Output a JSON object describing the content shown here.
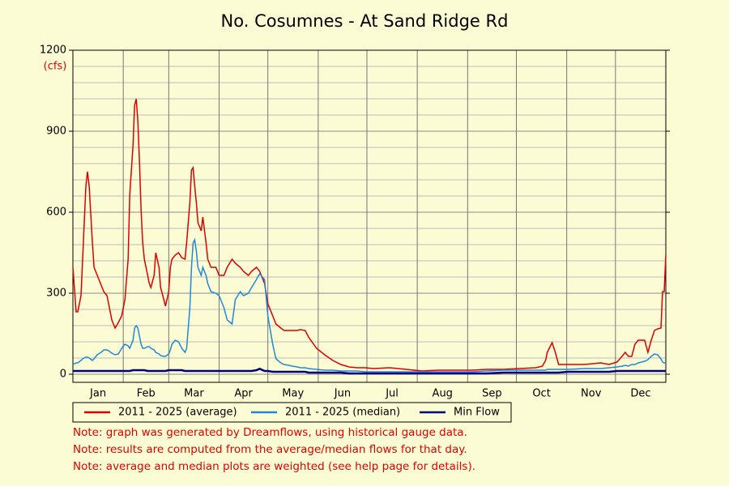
{
  "chart_data": {
    "type": "line",
    "title": "No. Cosumnes - At Sand Ridge Rd",
    "y_label": "(cfs)",
    "x": [
      1,
      3,
      4,
      6,
      7,
      9,
      10,
      11,
      13,
      14,
      16,
      19,
      20,
      22,
      23,
      25,
      27,
      29,
      31,
      33,
      35,
      36,
      38,
      39,
      40,
      41,
      42,
      43,
      44,
      45,
      47,
      48,
      49,
      51,
      52,
      54,
      55,
      57,
      58,
      60,
      61,
      62,
      64,
      66,
      68,
      70,
      71,
      73,
      74,
      75,
      76,
      77,
      78,
      80,
      81,
      83,
      84,
      86,
      89,
      91,
      94,
      96,
      99,
      101,
      104,
      106,
      109,
      111,
      114,
      116,
      119,
      121,
      124,
      126,
      129,
      131,
      134,
      136,
      139,
      141,
      144,
      146,
      151,
      156,
      161,
      166,
      171,
      176,
      181,
      186,
      196,
      206,
      216,
      226,
      236,
      246,
      256,
      266,
      276,
      286,
      290,
      292,
      293,
      296,
      298,
      300,
      306,
      316,
      326,
      331,
      336,
      339,
      341,
      343,
      345,
      347,
      349,
      351,
      353,
      355,
      357,
      359,
      361,
      363,
      364,
      365,
      366
    ],
    "series": [
      {
        "name": "2011 - 2025 (average)",
        "color": "#dd0000",
        "values": [
          396,
          231,
          231,
          291,
          426,
          696,
          750,
          696,
          486,
          396,
          366,
          321,
          306,
          291,
          261,
          201,
          171,
          192,
          216,
          276,
          426,
          666,
          846,
          996,
          1020,
          936,
          786,
          606,
          486,
          426,
          366,
          336,
          321,
          366,
          450,
          396,
          321,
          276,
          252,
          306,
          396,
          426,
          441,
          450,
          432,
          426,
          486,
          636,
          756,
          765,
          696,
          636,
          561,
          531,
          582,
          486,
          426,
          396,
          396,
          366,
          366,
          396,
          426,
          411,
          396,
          381,
          366,
          381,
          396,
          381,
          336,
          261,
          216,
          186,
          171,
          162,
          162,
          162,
          162,
          165,
          162,
          138,
          96,
          72,
          51,
          36,
          27,
          24,
          24,
          21,
          24,
          18,
          12,
          15,
          15,
          15,
          18,
          18,
          21,
          24,
          30,
          51,
          81,
          117,
          81,
          36,
          36,
          36,
          42,
          36,
          45,
          66,
          81,
          66,
          66,
          111,
          126,
          126,
          126,
          81,
          126,
          162,
          168,
          171,
          306,
          306,
          441
        ]
      },
      {
        "name": "2011 - 2025 (median)",
        "color": "#1f88d8",
        "values": [
          36,
          42,
          42,
          51,
          57,
          63,
          63,
          60,
          51,
          57,
          72,
          84,
          90,
          90,
          87,
          78,
          72,
          75,
          96,
          111,
          105,
          96,
          126,
          171,
          180,
          171,
          141,
          111,
          96,
          96,
          102,
          102,
          96,
          90,
          81,
          75,
          69,
          66,
          66,
          75,
          90,
          111,
          126,
          120,
          96,
          81,
          96,
          246,
          396,
          486,
          498,
          456,
          396,
          366,
          396,
          366,
          336,
          306,
          300,
          291,
          246,
          201,
          186,
          276,
          306,
          291,
          300,
          321,
          351,
          372,
          351,
          216,
          111,
          57,
          42,
          36,
          33,
          30,
          27,
          24,
          24,
          21,
          18,
          15,
          15,
          12,
          12,
          12,
          9,
          9,
          9,
          9,
          9,
          9,
          9,
          9,
          12,
          15,
          15,
          15,
          15,
          15,
          18,
          18,
          18,
          18,
          18,
          21,
          21,
          24,
          27,
          30,
          33,
          30,
          36,
          36,
          42,
          45,
          48,
          54,
          66,
          75,
          72,
          57,
          45,
          42,
          42
        ]
      },
      {
        "name": "Min Flow",
        "color": "#000080",
        "values": [
          12,
          12,
          12,
          12,
          12,
          12,
          12,
          12,
          12,
          12,
          12,
          12,
          12,
          12,
          12,
          12,
          12,
          12,
          12,
          12,
          12,
          12,
          15,
          15,
          15,
          15,
          15,
          15,
          15,
          15,
          12,
          12,
          12,
          12,
          12,
          12,
          12,
          12,
          12,
          15,
          15,
          15,
          15,
          15,
          15,
          12,
          12,
          12,
          12,
          12,
          12,
          12,
          12,
          12,
          12,
          12,
          12,
          12,
          12,
          12,
          12,
          12,
          12,
          12,
          12,
          12,
          12,
          12,
          15,
          20,
          12,
          12,
          9,
          9,
          9,
          9,
          9,
          9,
          9,
          9,
          9,
          6,
          6,
          6,
          6,
          6,
          3,
          3,
          3,
          3,
          3,
          3,
          3,
          3,
          3,
          3,
          3,
          6,
          6,
          6,
          6,
          6,
          6,
          6,
          6,
          6,
          9,
          9,
          9,
          9,
          12,
          12,
          12,
          12,
          12,
          12,
          12,
          12,
          12,
          12,
          12,
          12,
          12,
          12,
          12,
          12,
          12
        ]
      }
    ],
    "xlim": [
      1,
      366
    ],
    "xticks": [
      {
        "value": 1,
        "label": "Jan"
      },
      {
        "value": 32,
        "label": "Feb"
      },
      {
        "value": 60,
        "label": "Mar"
      },
      {
        "value": 91,
        "label": "Apr"
      },
      {
        "value": 121,
        "label": "May"
      },
      {
        "value": 152,
        "label": "Jun"
      },
      {
        "value": 182,
        "label": "Jul"
      },
      {
        "value": 213,
        "label": "Aug"
      },
      {
        "value": 244,
        "label": "Sep"
      },
      {
        "value": 274,
        "label": "Oct"
      },
      {
        "value": 305,
        "label": "Nov"
      },
      {
        "value": 335,
        "label": "Dec"
      }
    ],
    "ylim": [
      0,
      1200
    ],
    "yticks": [
      0,
      300,
      600,
      900,
      1200
    ],
    "y_minor_ticks": [
      60,
      120,
      180,
      240,
      360,
      420,
      480,
      540,
      660,
      720,
      780,
      840,
      960,
      1020,
      1080,
      1140
    ],
    "grid": true,
    "notes": [
      "Note: graph was generated by Dreamflows, using historical gauge data.",
      "Note: results are computed from the average/median flows for that day.",
      "Note: average and median plots are weighted (see help page for details)."
    ]
  }
}
